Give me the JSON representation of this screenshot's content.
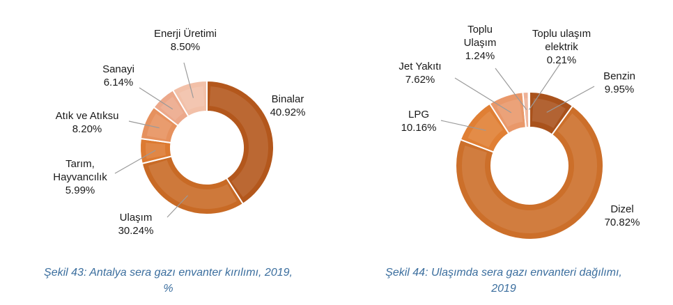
{
  "chart_data": [
    {
      "type": "donut",
      "caption": "Şekil 43: Antalya sera gazı envanter kırılımı, 2019, %",
      "caption_lines": [
        "Şekil 43: Antalya sera gazı envanter kırılımı, 2019,",
        "%"
      ],
      "slices": [
        {
          "label": "Binalar",
          "label_lines": [
            "Binalar"
          ],
          "value_text": "40.92%",
          "value": 40.92,
          "color": "#b3571c"
        },
        {
          "label": "Ulaşım",
          "label_lines": [
            "Ulaşım"
          ],
          "value_text": "30.24%",
          "value": 30.24,
          "color": "#c86a25"
        },
        {
          "label": "Tarım, Hayvancılık",
          "label_lines": [
            "Tarım,",
            "Hayvancılık"
          ],
          "value_text": "5.99%",
          "value": 5.99,
          "color": "#dc7a31"
        },
        {
          "label": "Atık ve Atıksu",
          "label_lines": [
            "Atık ve Atıksu"
          ],
          "value_text": "8.20%",
          "value": 8.2,
          "color": "#e6915e"
        },
        {
          "label": "Sanayi",
          "label_lines": [
            "Sanayi"
          ],
          "value_text": "6.14%",
          "value": 6.14,
          "color": "#eca88a"
        },
        {
          "label": "Enerji Üretimi",
          "label_lines": [
            "Enerji Üretimi"
          ],
          "value_text": "8.50%",
          "value": 8.5,
          "color": "#f2c0a8"
        }
      ]
    },
    {
      "type": "donut",
      "caption": "Şekil 44: Ulaşımda sera gazı envanteri dağılımı, 2019",
      "caption_lines": [
        "Şekil 44: Ulaşımda sera gazı envanteri dağılımı,",
        "2019"
      ],
      "slices": [
        {
          "label": "Benzin",
          "label_lines": [
            "Benzin"
          ],
          "value_text": "9.95%",
          "value": 9.95,
          "color": "#a9521c"
        },
        {
          "label": "Dizel",
          "label_lines": [
            "Dizel"
          ],
          "value_text": "70.82%",
          "value": 70.82,
          "color": "#cc6f2a"
        },
        {
          "label": "LPG",
          "label_lines": [
            "LPG"
          ],
          "value_text": "10.16%",
          "value": 10.16,
          "color": "#e07f34"
        },
        {
          "label": "Jet Yakıtı",
          "label_lines": [
            "Jet Yakıtı"
          ],
          "value_text": "7.62%",
          "value": 7.62,
          "color": "#e9986a"
        },
        {
          "label": "Toplu Ulaşım",
          "label_lines": [
            "Toplu",
            "Ulaşım"
          ],
          "value_text": "1.24%",
          "value": 1.24,
          "color": "#eeb196"
        },
        {
          "label": "Toplu ulaşım elektrik",
          "label_lines": [
            "Toplu ulaşım",
            "elektrik"
          ],
          "value_text": "0.21%",
          "value": 0.21,
          "color": "#f4c6b0"
        }
      ]
    }
  ]
}
